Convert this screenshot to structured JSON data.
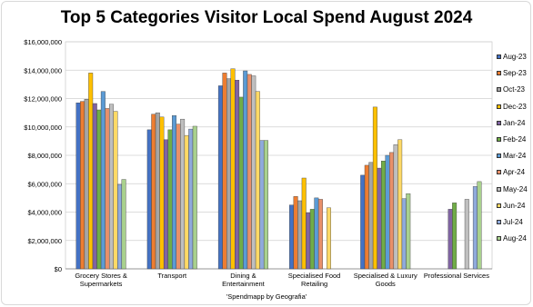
{
  "chart_data": {
    "type": "bar",
    "title": "Top 5 Categories Visitor Local Spend August 2024",
    "xlabel": "",
    "ylabel": "",
    "caption": "'Spendmapp by Geografia'",
    "ylim": [
      0,
      16000000
    ],
    "yticks": [
      "$0",
      "$2,000,000",
      "$4,000,000",
      "$6,000,000",
      "$8,000,000",
      "$10,000,000",
      "$12,000,000",
      "$14,000,000",
      "$16,000,000"
    ],
    "ytick_values": [
      0,
      2000000,
      4000000,
      6000000,
      8000000,
      10000000,
      12000000,
      14000000,
      16000000
    ],
    "grid": true,
    "legend_position": "right",
    "categories": [
      [
        "Grocery Stores &",
        "Supermarkets"
      ],
      [
        "Transport"
      ],
      [
        "Dining &",
        "Entertainment"
      ],
      [
        "Specialised Food",
        "Retailing"
      ],
      [
        "Specialised & Luxury",
        "Goods"
      ],
      [
        "Professional Services"
      ]
    ],
    "series": [
      {
        "name": "Aug-23",
        "color": "#4472c4",
        "values": [
          11700000,
          9800000,
          12900000,
          4500000,
          6600000,
          null
        ]
      },
      {
        "name": "Sep-23",
        "color": "#ed7d31",
        "values": [
          11800000,
          10900000,
          13800000,
          5100000,
          7300000,
          null
        ]
      },
      {
        "name": "Oct-23",
        "color": "#a5a5a5",
        "values": [
          11950000,
          11000000,
          13400000,
          4800000,
          7500000,
          null
        ]
      },
      {
        "name": "Dec-23",
        "color": "#ffc000",
        "values": [
          13800000,
          10700000,
          14100000,
          6400000,
          11400000,
          null
        ]
      },
      {
        "name": "Jan-24",
        "color": "#8064a2",
        "values": [
          11650000,
          9100000,
          13300000,
          3950000,
          7100000,
          4200000
        ]
      },
      {
        "name": "Feb-24",
        "color": "#70ad47",
        "values": [
          11200000,
          9800000,
          12100000,
          4200000,
          7600000,
          4650000
        ]
      },
      {
        "name": "Mar-24",
        "color": "#5b9bd5",
        "values": [
          12500000,
          10800000,
          13950000,
          5000000,
          8000000,
          null
        ]
      },
      {
        "name": "Apr-24",
        "color": "#e8906a",
        "values": [
          11300000,
          10200000,
          13700000,
          4900000,
          8200000,
          null
        ]
      },
      {
        "name": "May-24",
        "color": "#bfbfbf",
        "values": [
          11600000,
          10550000,
          13600000,
          null,
          8750000,
          4900000
        ]
      },
      {
        "name": "Jun-24",
        "color": "#ffd966",
        "values": [
          11100000,
          9400000,
          12500000,
          4300000,
          9100000,
          null
        ]
      },
      {
        "name": "Jul-24",
        "color": "#8faadc",
        "values": [
          5950000,
          9850000,
          9050000,
          null,
          4950000,
          5800000
        ]
      },
      {
        "name": "Aug-24",
        "color": "#a9d18e",
        "values": [
          6300000,
          10050000,
          9050000,
          null,
          5300000,
          6150000
        ]
      }
    ]
  }
}
